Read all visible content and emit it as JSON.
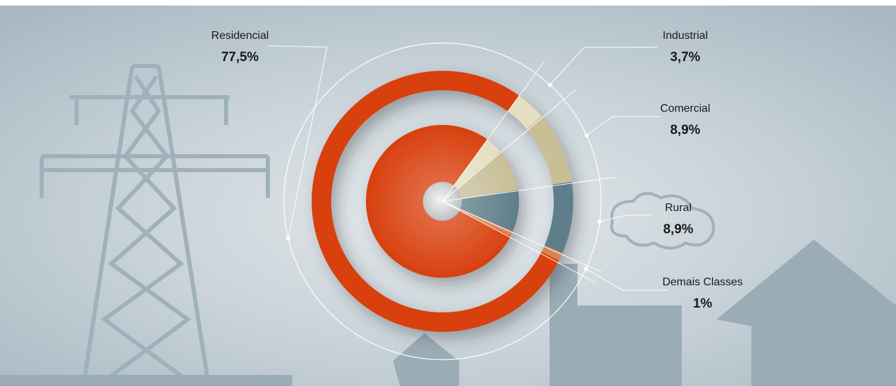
{
  "chart_data": {
    "type": "pie",
    "categories": [
      "Residencial",
      "Industrial",
      "Comercial",
      "Rural",
      "Demais Classes"
    ],
    "values": [
      77.5,
      3.7,
      8.9,
      8.9,
      1
    ],
    "value_labels": [
      "77,5%",
      "3,7%",
      "8,9%",
      "8,9%",
      "1%"
    ],
    "colors": [
      "#d8400e",
      "#e5dfc1",
      "#c8bf97",
      "#5e7e8b",
      "#d88455"
    ]
  }
}
